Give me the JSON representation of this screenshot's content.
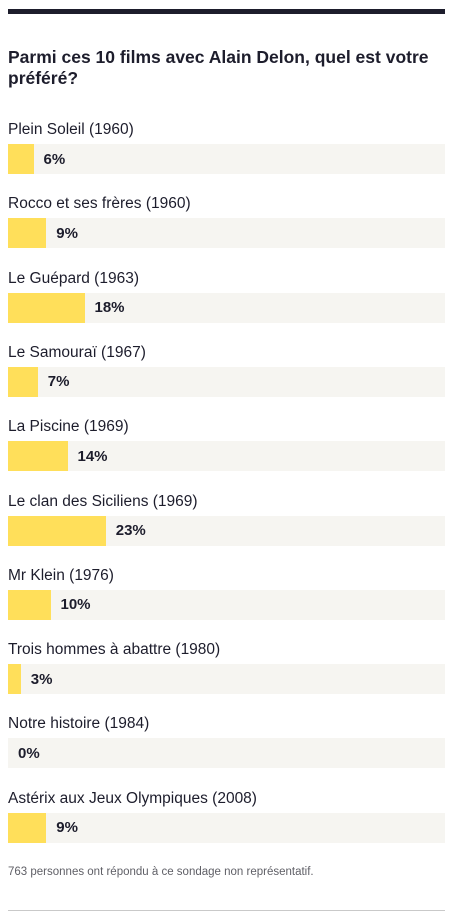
{
  "poll": {
    "question": "Parmi ces 10 films avec Alain Delon, quel est votre préféré?",
    "options": [
      {
        "label": "Plein Soleil (1960)",
        "percent": 6,
        "percent_label": "6%"
      },
      {
        "label": "Rocco et ses frères (1960)",
        "percent": 9,
        "percent_label": "9%"
      },
      {
        "label": "Le Guépard (1963)",
        "percent": 18,
        "percent_label": "18%"
      },
      {
        "label": "Le Samouraï (1967)",
        "percent": 7,
        "percent_label": "7%"
      },
      {
        "label": "La Piscine (1969)",
        "percent": 14,
        "percent_label": "14%"
      },
      {
        "label": "Le clan des Siciliens (1969)",
        "percent": 23,
        "percent_label": "23%"
      },
      {
        "label": "Mr Klein (1976)",
        "percent": 10,
        "percent_label": "10%"
      },
      {
        "label": "Trois hommes à abattre (1980)",
        "percent": 3,
        "percent_label": "3%"
      },
      {
        "label": "Notre histoire (1984)",
        "percent": 0,
        "percent_label": "0%"
      },
      {
        "label": "Astérix aux Jeux Olympiques (2008)",
        "percent": 9,
        "percent_label": "9%"
      }
    ],
    "footnote": "763 personnes ont répondu à ce sondage non représentatif."
  },
  "colors": {
    "bar_fill": "#ffdf5a",
    "bar_track": "#f6f5f1",
    "text": "#1d1d2c",
    "footnote": "#5f5f66"
  }
}
